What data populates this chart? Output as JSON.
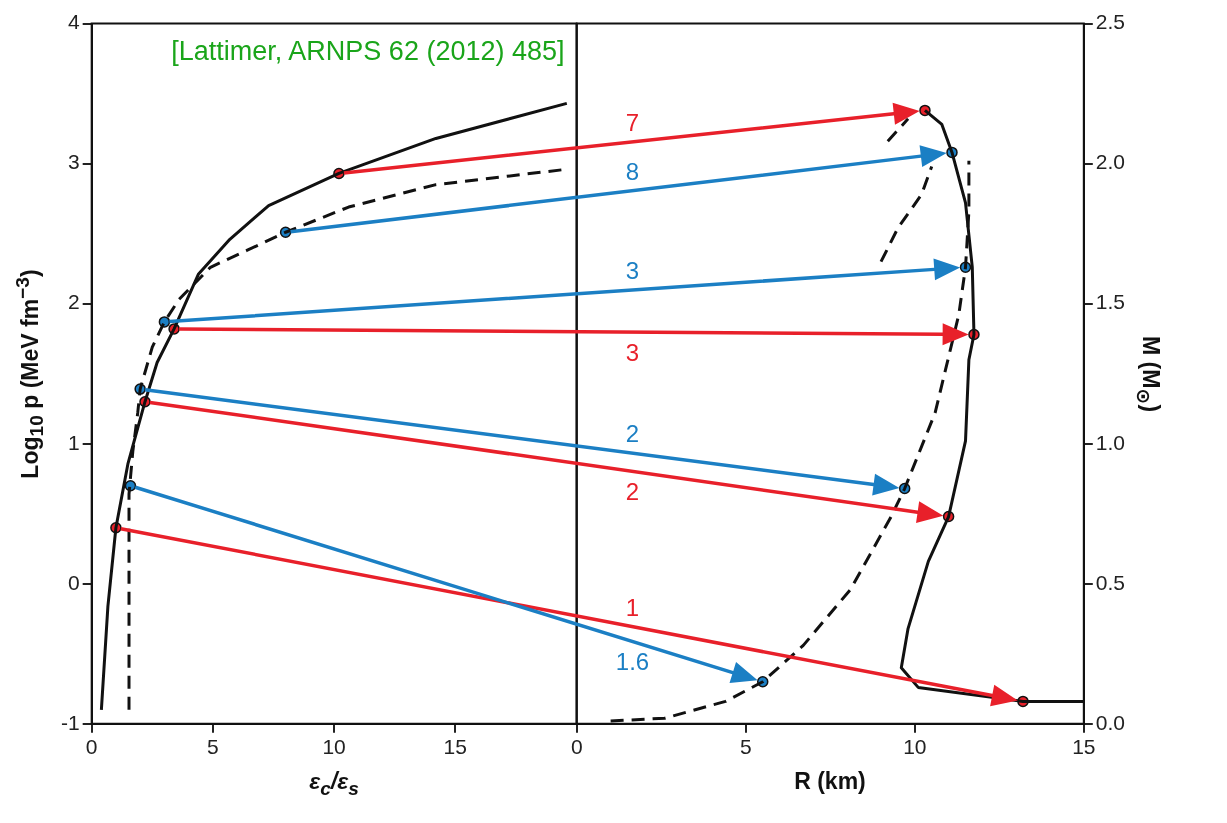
{
  "chart_data": [
    {
      "type": "line",
      "xlabel": "ε$_{c}$/ε$_{s}$",
      "ylabel": "Log$_{10}$ p (MeV fm$^{−3}$)",
      "xlim": [
        0,
        20
      ],
      "xticks": [
        0,
        5,
        10,
        15
      ],
      "ylim": [
        -1,
        4
      ],
      "yticks": [
        -1,
        0,
        1,
        2,
        3,
        4
      ],
      "legend": false,
      "annotations": [
        "[Lattimer, ARNPS 62 (2012) 485]"
      ],
      "series": [
        {
          "color": "#111111",
          "line_style": "solid",
          "x": [
            0.4,
            0.67,
            1.0,
            1.5,
            2.2,
            2.7,
            3.4,
            4.4,
            5.7,
            7.3,
            10.2,
            14.2,
            19.6
          ],
          "values": [
            -0.9,
            -0.16,
            0.4,
            0.86,
            1.3,
            1.58,
            1.82,
            2.21,
            2.46,
            2.7,
            2.93,
            3.18,
            3.43
          ]
        },
        {
          "color": "#111111",
          "line_style": "dashed",
          "x": [
            1.54,
            1.54,
            1.7,
            1.9,
            2.0,
            2.5,
            3.0,
            3.6,
            4.9,
            6.4,
            8.0,
            10.6,
            14.2,
            19.6
          ],
          "values": [
            -0.9,
            0.64,
            0.95,
            1.22,
            1.39,
            1.69,
            1.87,
            2.03,
            2.26,
            2.38,
            2.51,
            2.69,
            2.85,
            2.96
          ]
        },
        {
          "type": "scatter",
          "marker": "circle",
          "color": "#e8202a",
          "x": [
            10.2,
            3.4,
            2.2,
            1.0
          ],
          "values": [
            2.93,
            1.82,
            1.3,
            0.4
          ]
        },
        {
          "type": "scatter",
          "marker": "circle",
          "color": "#1b7fc4",
          "x": [
            8.0,
            3.0,
            2.0,
            1.6
          ],
          "values": [
            2.51,
            1.87,
            1.39,
            0.7
          ]
        }
      ]
    },
    {
      "type": "line",
      "xlabel": "R (km)",
      "annotations": [
        "7",
        "3",
        "2",
        "1",
        "8",
        "3",
        "2",
        "1.6"
      ],
      "ylabel": "M (M$_{⊙}$)",
      "xlim": [
        0,
        15
      ],
      "xticks": [
        0,
        5,
        10,
        15
      ],
      "ylim": [
        0,
        2.5
      ],
      "yticks": [
        {
          "value": 0,
          "label": "0.0"
        },
        0.5,
        {
          "value": 1,
          "label": "1.0"
        },
        1.5,
        {
          "value": 2,
          "label": "2.0"
        },
        2.5
      ],
      "legend": false,
      "series": [
        {
          "color": "#111111",
          "line_style": "solid",
          "x": [
            15,
            13.2,
            10.1,
            9.6,
            9.8,
            10.4,
            11.0,
            11.5,
            11.6,
            11.75,
            11.7,
            11.5,
            11.1,
            10.8,
            10.3
          ],
          "values": [
            0.08,
            0.08,
            0.13,
            0.2,
            0.34,
            0.58,
            0.74,
            1.01,
            1.3,
            1.39,
            1.63,
            1.86,
            2.04,
            2.14,
            2.19
          ]
        },
        {
          "color": "#111111",
          "line_style": "dashed",
          "x": [
            1.0,
            2.6,
            4.4,
            5.5,
            6.7,
            8.1,
            9.3,
            9.7,
            10.6,
            11.3,
            11.5,
            11.6,
            11.6
          ],
          "values": [
            0.01,
            0.02,
            0.08,
            0.15,
            0.28,
            0.48,
            0.74,
            0.84,
            1.11,
            1.46,
            1.63,
            1.83,
            2.01
          ]
        },
        {
          "color": "#111111",
          "line_style": "dashed",
          "x": [
            9.0,
            9.5,
            10.2,
            10.5,
            10.0,
            9.2,
            9.8
          ],
          "values": [
            1.65,
            1.77,
            1.89,
            1.99,
            null,
            2.08,
            2.16
          ]
        },
        {
          "type": "scatter",
          "marker": "circle",
          "color": "#e8202a",
          "x": [
            10.3,
            11.75,
            11.0,
            13.2
          ],
          "values": [
            2.19,
            1.39,
            0.74,
            0.08
          ]
        },
        {
          "type": "scatter",
          "marker": "circle",
          "color": "#1b7fc4",
          "x": [
            11.1,
            11.5,
            9.7,
            5.5
          ],
          "values": [
            2.04,
            1.63,
            0.84,
            0.15
          ]
        }
      ]
    }
  ]
}
